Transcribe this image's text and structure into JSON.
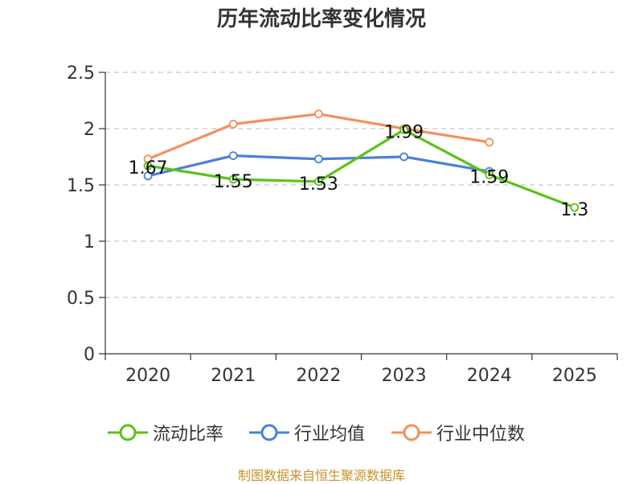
{
  "chart_data": {
    "type": "line",
    "title": "历年流动比率变化情况",
    "categories": [
      "2020",
      "2021",
      "2022",
      "2023",
      "2024",
      "2025"
    ],
    "yticks": [
      "0",
      "0.5",
      "1",
      "1.5",
      "2",
      "2.5"
    ],
    "ylim": [
      0,
      2.5
    ],
    "grid": true,
    "series": [
      {
        "name": "流动比率",
        "color": "#5ac21a",
        "values": [
          1.67,
          1.55,
          1.53,
          1.99,
          1.59,
          1.3
        ],
        "labels": [
          "1.67",
          "1.55",
          "1.53",
          "1.99",
          "1.59",
          "1.3"
        ]
      },
      {
        "name": "行业均值",
        "color": "#4a80d8",
        "values": [
          1.58,
          1.76,
          1.73,
          1.75,
          1.62,
          null
        ]
      },
      {
        "name": "行业中位数",
        "color": "#f4905a",
        "values": [
          1.73,
          2.04,
          2.13,
          2.0,
          1.88,
          null
        ]
      }
    ],
    "legend_position": "bottom"
  },
  "source": "制图数据来自恒生聚源数据库"
}
